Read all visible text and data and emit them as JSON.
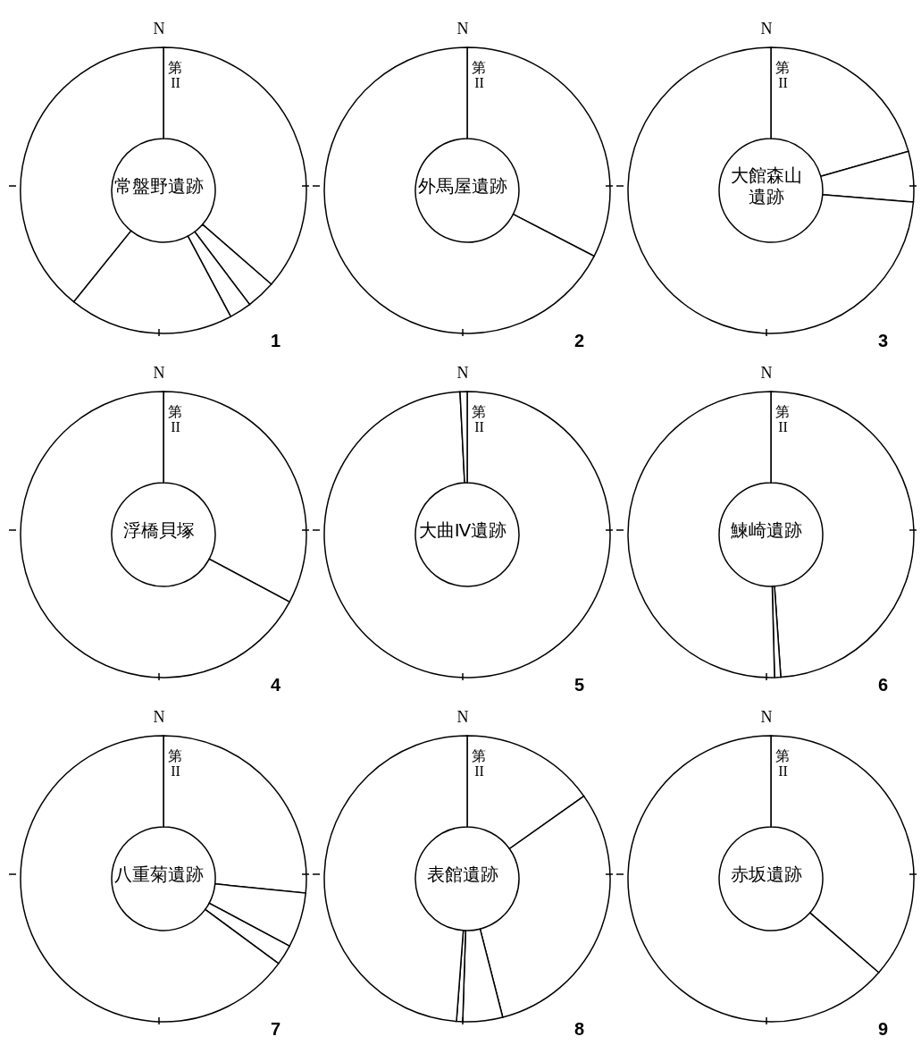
{
  "chart_data": [
    {
      "type": "donut",
      "title": "常盤野遺跡",
      "categories": [
        "第II",
        null,
        null,
        null,
        null
      ],
      "values": [
        36.4,
        3.3,
        2.5,
        18.6,
        39.2
      ],
      "colors": [
        "#ffffff",
        "#ffffff",
        "#ffffff",
        "#ffffff",
        "#ffffff"
      ],
      "annotations": [
        "N",
        "1"
      ]
    },
    {
      "type": "donut",
      "title": "外馬屋遺跡",
      "categories": [
        "第II",
        null
      ],
      "values": [
        32.6,
        67.4
      ],
      "colors": [
        "#ffffff",
        "#ffffff"
      ],
      "annotations": [
        "N",
        "2"
      ]
    },
    {
      "type": "donut",
      "title": "大館森山遺跡",
      "categories": [
        "第II",
        null,
        null
      ],
      "values": [
        20.6,
        5.7,
        73.7
      ],
      "colors": [
        "#ffffff",
        "#ffffff",
        "#ffffff"
      ],
      "annotations": [
        "N",
        "3"
      ]
    },
    {
      "type": "donut",
      "title": "浮橋貝塚",
      "categories": [
        "第II",
        null
      ],
      "values": [
        32.8,
        67.2
      ],
      "colors": [
        "#ffffff",
        "#ffffff"
      ],
      "annotations": [
        "N",
        "4"
      ]
    },
    {
      "type": "donut",
      "title": "大曲Ⅳ遺跡",
      "categories": [
        "第II",
        null
      ],
      "values": [
        99.2,
        0.8
      ],
      "colors": [
        "#ffffff",
        "#ffffff"
      ],
      "annotations": [
        "N",
        "5"
      ]
    },
    {
      "type": "donut",
      "title": "鰊崎遺跡",
      "categories": [
        "第II",
        null,
        null
      ],
      "values": [
        48.9,
        0.7,
        50.4
      ],
      "colors": [
        "#ffffff",
        "#ffffff",
        "#ffffff"
      ],
      "annotations": [
        "N",
        "6"
      ]
    },
    {
      "type": "donut",
      "title": "八重菊遺跡",
      "categories": [
        "第II",
        null,
        null,
        null
      ],
      "values": [
        26.6,
        6.2,
        2.3,
        64.9
      ],
      "colors": [
        "#ffffff",
        "#ffffff",
        "#ffffff",
        "#ffffff"
      ],
      "annotations": [
        "N",
        "7"
      ]
    },
    {
      "type": "donut",
      "title": "表館遺跡",
      "categories": [
        "第II",
        null,
        null,
        null,
        null
      ],
      "values": [
        15.2,
        30.8,
        4.5,
        0.7,
        48.8
      ],
      "colors": [
        "#ffffff",
        "#ffffff",
        "#ffffff",
        "#ffffff",
        "#ffffff"
      ],
      "annotations": [
        "N",
        "8"
      ]
    },
    {
      "type": "donut",
      "title": "赤坂遺跡",
      "categories": [
        "第II",
        null
      ],
      "values": [
        36.4,
        63.6
      ],
      "colors": [
        "#ffffff",
        "#ffffff"
      ],
      "annotations": [
        "N",
        "9"
      ]
    }
  ]
}
